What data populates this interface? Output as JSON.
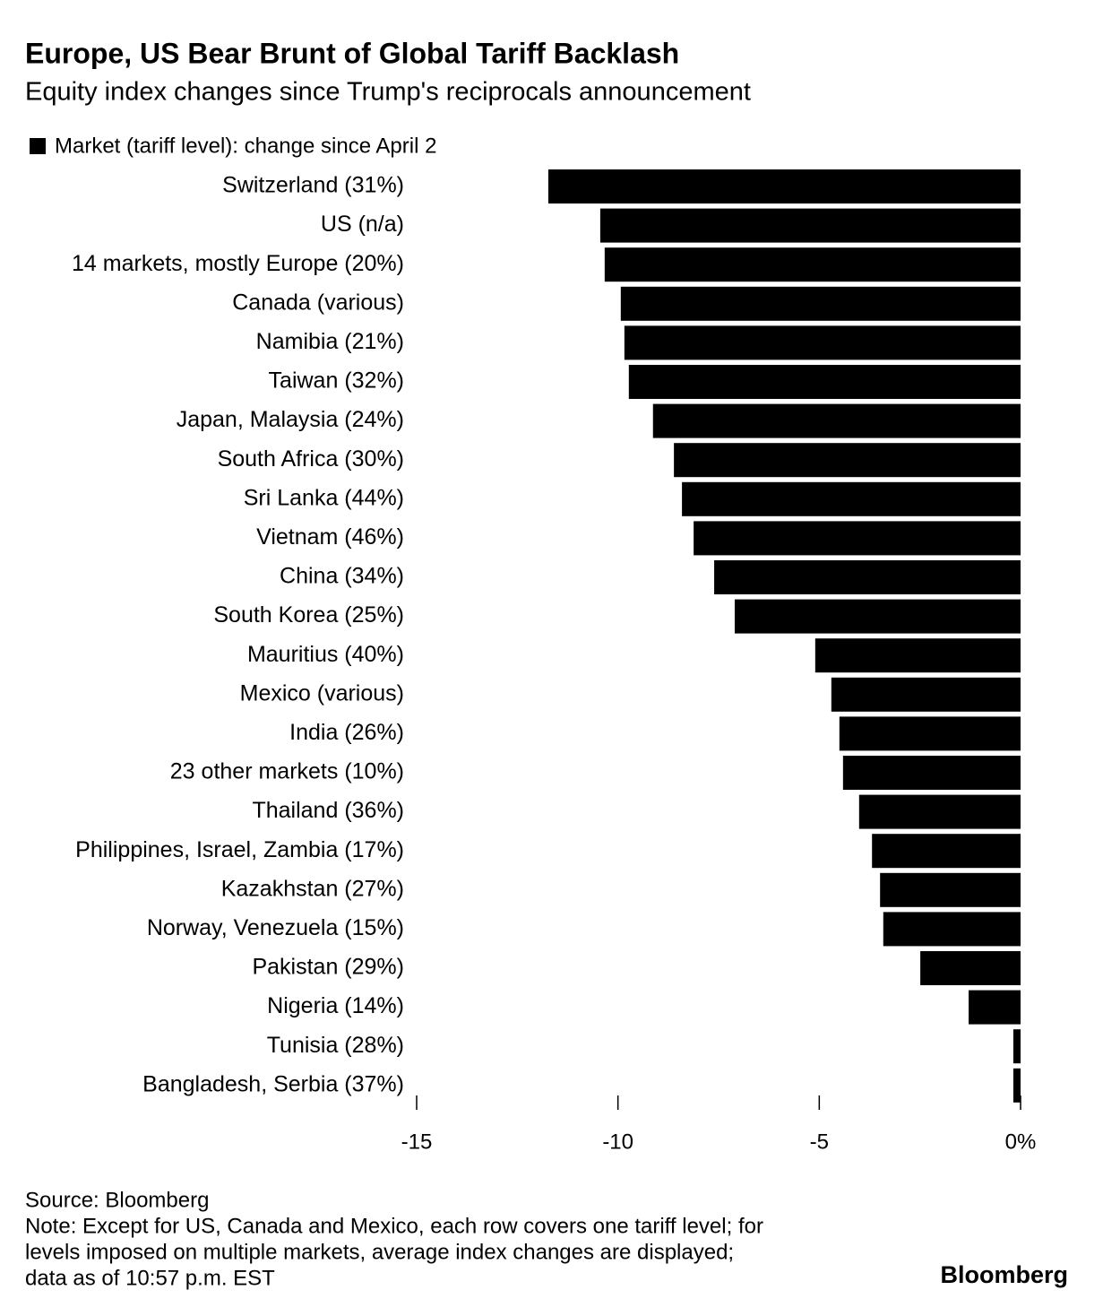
{
  "chart_data": {
    "type": "bar",
    "orientation": "horizontal",
    "title": "Europe, US Bear Brunt of Global Tariff Backlash",
    "subtitle": "Equity index changes since Trump's reciprocals announcement",
    "series": [
      {
        "name": "Market (tariff level): change since April 2",
        "color": "#000000",
        "values": [
          -11.73,
          -10.44,
          -10.33,
          -9.93,
          -9.84,
          -9.73,
          -9.13,
          -8.61,
          -8.41,
          -8.12,
          -7.61,
          -7.1,
          -5.1,
          -4.7,
          -4.5,
          -4.41,
          -4.01,
          -3.69,
          -3.49,
          -3.41,
          -2.49,
          -1.29,
          -0.18,
          -0.18
        ]
      }
    ],
    "categories": [
      "Switzerland (31%)",
      "US (n/a)",
      "14 markets, mostly Europe (20%)",
      "Canada (various)",
      "Namibia (21%)",
      "Taiwan (32%)",
      "Japan, Malaysia (24%)",
      "South Africa (30%)",
      "Sri Lanka (44%)",
      "Vietnam (46%)",
      "China (34%)",
      "South Korea (25%)",
      "Mauritius (40%)",
      "Mexico (various)",
      "India (26%)",
      "23 other markets (10%)",
      "Thailand (36%)",
      "Philippines, Israel, Zambia (17%)",
      "Kazakhstan (27%)",
      "Norway, Venezuela (15%)",
      "Pakistan (29%)",
      "Nigeria (14%)",
      "Tunisia (28%)",
      "Bangladesh, Serbia (37%)"
    ],
    "xlim": [
      -15,
      0
    ],
    "xticks": [
      -15,
      -10,
      -5,
      {
        "value": 0,
        "label": "0%"
      }
    ],
    "source": "Source: Bloomberg",
    "note": [
      "Note: Except for US, Canada and Mexico, each row covers one tariff level; for",
      "levels imposed on multiple markets, average index changes are displayed;",
      "data as of 10:57 p.m. EST"
    ],
    "brand": "Bloomberg"
  }
}
